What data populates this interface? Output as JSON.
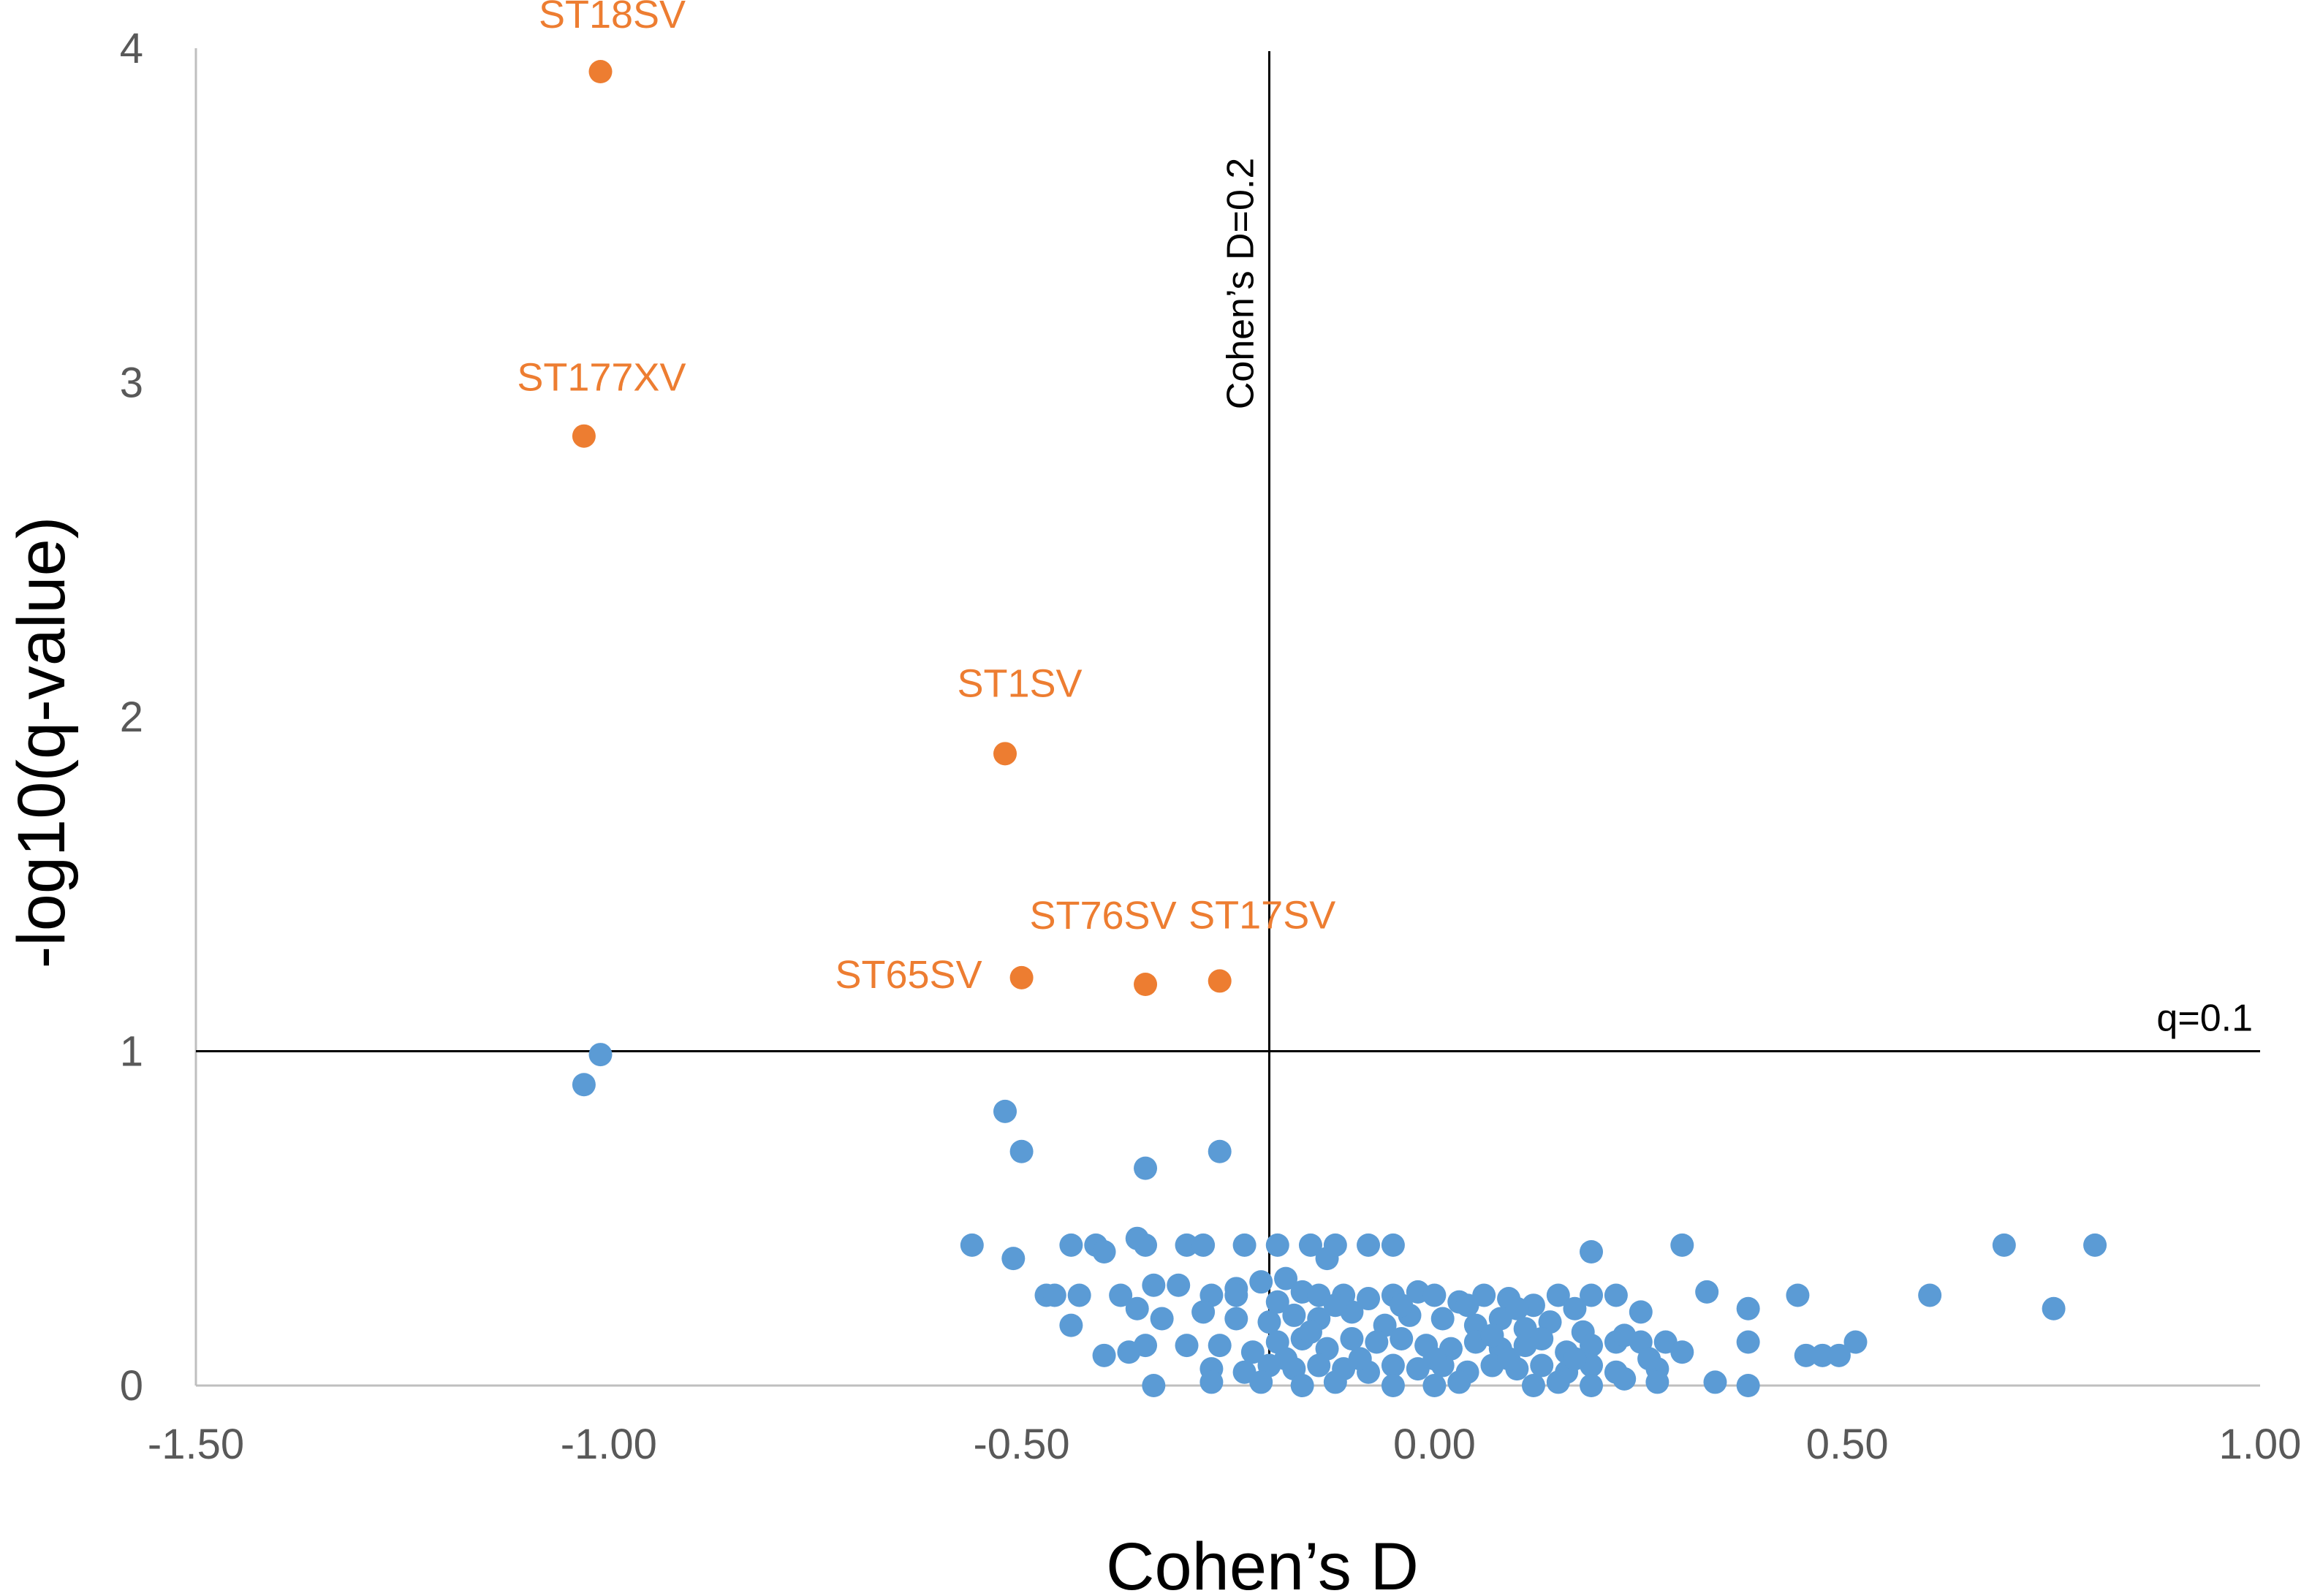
{
  "chart_data": {
    "type": "scatter",
    "xlabel": "Cohen’s D",
    "ylabel": "-log10(q-value)",
    "xlim": [
      -1.5,
      1.0
    ],
    "ylim": [
      0,
      4
    ],
    "x_ticks": [
      "-1.50",
      "-1.00",
      "-0.50",
      "0.00",
      "0.50",
      "1.00"
    ],
    "y_ticks": [
      "0",
      "1",
      "2",
      "3",
      "4"
    ],
    "grid": false,
    "reference_lines": [
      {
        "orientation": "vertical",
        "value": -0.2,
        "label": "Cohen’s D=0.2"
      },
      {
        "orientation": "horizontal",
        "value": 1.0,
        "label": "q=0.1"
      }
    ],
    "colors": {
      "significant": "#ed7d31",
      "nonsignificant": "#5b9bd5",
      "axis": "#bfbfbf",
      "ref_line": "#000000"
    },
    "series": [
      {
        "name": "significant",
        "color": "#ed7d31",
        "points": [
          {
            "x": -1.01,
            "y": 3.93,
            "label": "ST18SV"
          },
          {
            "x": -1.03,
            "y": 2.84,
            "label": "ST177XV"
          },
          {
            "x": -0.52,
            "y": 1.89,
            "label": "ST1SV"
          },
          {
            "x": -0.5,
            "y": 1.22,
            "label": "ST65SV"
          },
          {
            "x": -0.35,
            "y": 1.2,
            "label": "ST76SV"
          },
          {
            "x": -0.26,
            "y": 1.21,
            "label": "ST17SV"
          }
        ]
      },
      {
        "name": "nonsignificant",
        "color": "#5b9bd5",
        "points": [
          [
            -1.01,
            0.99
          ],
          [
            -1.03,
            0.9
          ],
          [
            -0.52,
            0.82
          ],
          [
            -0.5,
            0.7
          ],
          [
            -0.35,
            0.65
          ],
          [
            -0.26,
            0.7
          ],
          [
            -0.56,
            0.42
          ],
          [
            -0.51,
            0.38
          ],
          [
            -0.44,
            0.42
          ],
          [
            -0.41,
            0.42
          ],
          [
            -0.4,
            0.4
          ],
          [
            -0.36,
            0.44
          ],
          [
            -0.35,
            0.42
          ],
          [
            -0.3,
            0.42
          ],
          [
            -0.28,
            0.42
          ],
          [
            -0.23,
            0.42
          ],
          [
            -0.19,
            0.42
          ],
          [
            -0.15,
            0.42
          ],
          [
            -0.13,
            0.38
          ],
          [
            -0.12,
            0.42
          ],
          [
            -0.08,
            0.42
          ],
          [
            -0.05,
            0.42
          ],
          [
            0.19,
            0.4
          ],
          [
            0.3,
            0.42
          ],
          [
            0.69,
            0.42
          ],
          [
            0.8,
            0.42
          ],
          [
            -0.47,
            0.27
          ],
          [
            -0.46,
            0.27
          ],
          [
            -0.43,
            0.27
          ],
          [
            -0.38,
            0.27
          ],
          [
            -0.34,
            0.3
          ],
          [
            -0.31,
            0.3
          ],
          [
            -0.27,
            0.27
          ],
          [
            -0.24,
            0.29
          ],
          [
            -0.21,
            0.31
          ],
          [
            -0.18,
            0.32
          ],
          [
            -0.16,
            0.28
          ],
          [
            -0.14,
            0.27
          ],
          [
            -0.11,
            0.27
          ],
          [
            -0.08,
            0.26
          ],
          [
            -0.05,
            0.27
          ],
          [
            -0.02,
            0.28
          ],
          [
            0.0,
            0.27
          ],
          [
            0.03,
            0.25
          ],
          [
            0.06,
            0.27
          ],
          [
            0.09,
            0.26
          ],
          [
            0.12,
            0.24
          ],
          [
            0.15,
            0.27
          ],
          [
            0.19,
            0.27
          ],
          [
            0.22,
            0.27
          ],
          [
            0.25,
            0.22
          ],
          [
            0.33,
            0.28
          ],
          [
            0.38,
            0.23
          ],
          [
            0.44,
            0.27
          ],
          [
            0.6,
            0.27
          ],
          [
            0.75,
            0.23
          ],
          [
            -0.44,
            0.18
          ],
          [
            -0.36,
            0.23
          ],
          [
            -0.33,
            0.2
          ],
          [
            -0.28,
            0.22
          ],
          [
            -0.24,
            0.2
          ],
          [
            -0.2,
            0.19
          ],
          [
            -0.17,
            0.21
          ],
          [
            -0.14,
            0.2
          ],
          [
            -0.1,
            0.22
          ],
          [
            -0.06,
            0.18
          ],
          [
            -0.03,
            0.21
          ],
          [
            0.01,
            0.2
          ],
          [
            0.05,
            0.18
          ],
          [
            0.08,
            0.2
          ],
          [
            0.11,
            0.17
          ],
          [
            0.14,
            0.19
          ],
          [
            0.18,
            0.16
          ],
          [
            -0.4,
            0.09
          ],
          [
            -0.37,
            0.1
          ],
          [
            -0.35,
            0.12
          ],
          [
            -0.3,
            0.12
          ],
          [
            -0.26,
            0.12
          ],
          [
            -0.22,
            0.1
          ],
          [
            -0.19,
            0.13
          ],
          [
            -0.16,
            0.14
          ],
          [
            -0.13,
            0.11
          ],
          [
            -0.1,
            0.14
          ],
          [
            -0.07,
            0.13
          ],
          [
            -0.04,
            0.14
          ],
          [
            -0.01,
            0.12
          ],
          [
            0.02,
            0.11
          ],
          [
            0.05,
            0.13
          ],
          [
            0.08,
            0.11
          ],
          [
            0.11,
            0.12
          ],
          [
            0.13,
            0.14
          ],
          [
            0.16,
            0.1
          ],
          [
            0.19,
            0.12
          ],
          [
            0.22,
            0.13
          ],
          [
            0.25,
            0.13
          ],
          [
            0.28,
            0.13
          ],
          [
            0.3,
            0.1
          ],
          [
            0.38,
            0.13
          ],
          [
            0.45,
            0.09
          ],
          [
            0.47,
            0.09
          ],
          [
            0.49,
            0.09
          ],
          [
            0.51,
            0.13
          ],
          [
            -0.27,
            0.05
          ],
          [
            -0.23,
            0.04
          ],
          [
            -0.2,
            0.06
          ],
          [
            -0.17,
            0.05
          ],
          [
            -0.14,
            0.06
          ],
          [
            -0.11,
            0.05
          ],
          [
            -0.08,
            0.04
          ],
          [
            -0.05,
            0.06
          ],
          [
            -0.02,
            0.05
          ],
          [
            0.01,
            0.06
          ],
          [
            0.04,
            0.04
          ],
          [
            0.07,
            0.06
          ],
          [
            0.1,
            0.05
          ],
          [
            0.13,
            0.06
          ],
          [
            0.16,
            0.04
          ],
          [
            0.19,
            0.06
          ],
          [
            0.22,
            0.04
          ],
          [
            0.27,
            0.05
          ],
          [
            -0.34,
            0.0
          ],
          [
            -0.27,
            0.01
          ],
          [
            -0.21,
            0.01
          ],
          [
            -0.16,
            0.0
          ],
          [
            -0.12,
            0.01
          ],
          [
            -0.05,
            0.0
          ],
          [
            0.0,
            0.0
          ],
          [
            0.03,
            0.01
          ],
          [
            0.12,
            0.0
          ],
          [
            0.15,
            0.01
          ],
          [
            0.19,
            0.0
          ],
          [
            0.23,
            0.02
          ],
          [
            0.27,
            0.01
          ],
          [
            0.34,
            0.01
          ],
          [
            0.38,
            0.0
          ],
          [
            -0.24,
            0.27
          ],
          [
            -0.19,
            0.25
          ],
          [
            -0.12,
            0.24
          ],
          [
            -0.04,
            0.24
          ],
          [
            0.04,
            0.24
          ],
          [
            0.1,
            0.23
          ],
          [
            0.17,
            0.23
          ],
          [
            -0.18,
            0.08
          ],
          [
            -0.09,
            0.08
          ],
          [
            0.0,
            0.08
          ],
          [
            0.09,
            0.08
          ],
          [
            0.17,
            0.08
          ],
          [
            0.26,
            0.08
          ],
          [
            -0.15,
            0.16
          ],
          [
            0.07,
            0.15
          ],
          [
            0.23,
            0.15
          ]
        ]
      }
    ]
  }
}
